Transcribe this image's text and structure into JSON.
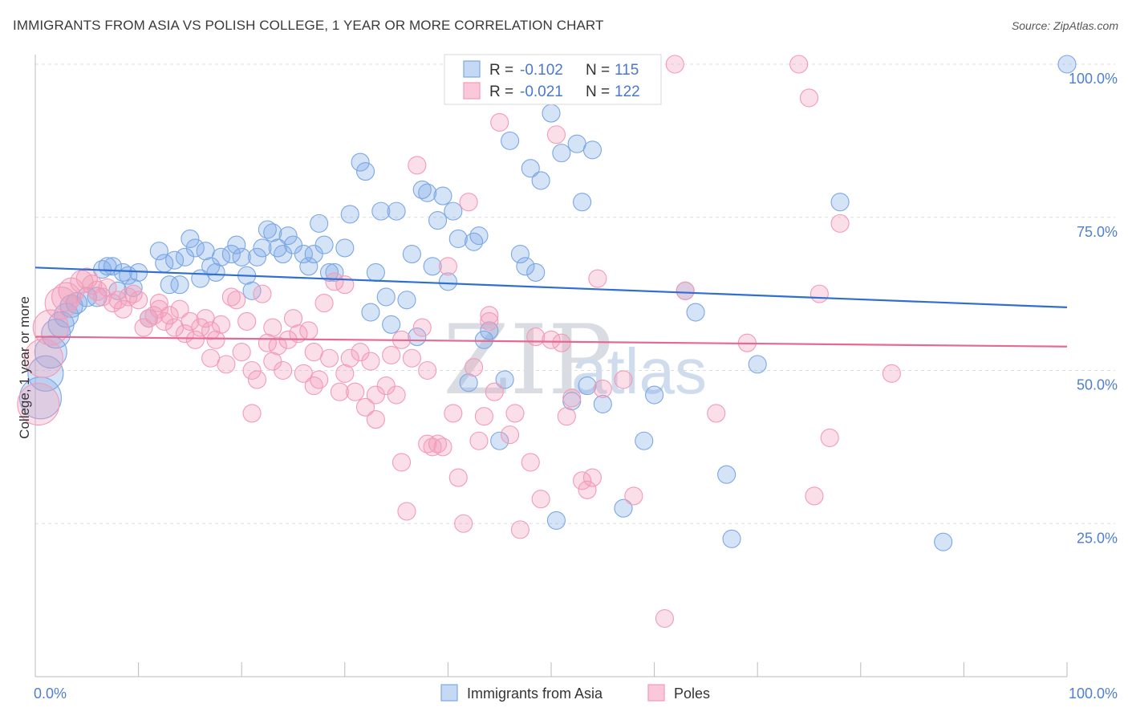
{
  "header": {
    "title": "IMMIGRANTS FROM ASIA VS POLISH COLLEGE, 1 YEAR OR MORE CORRELATION CHART",
    "source": "Source: ZipAtlas.com"
  },
  "watermark": {
    "zip": "ZIP",
    "atlas": "atlas"
  },
  "legend": {
    "r_label": "R =",
    "n_label": "N =",
    "rows": [
      {
        "r": "-0.102",
        "n": "115",
        "color": "#7ba7e6"
      },
      {
        "r": "-0.021",
        "n": "122",
        "color": "#f39ab8"
      }
    ]
  },
  "chart_data": {
    "type": "scatter",
    "title": "IMMIGRANTS FROM ASIA VS POLISH COLLEGE, 1 YEAR OR MORE CORRELATION CHART",
    "xlabel": "",
    "ylabel": "College, 1 year or more",
    "xlim": [
      0,
      100
    ],
    "ylim": [
      0,
      100
    ],
    "x_tick_labels": [
      "0.0%",
      "100.0%"
    ],
    "y_tick_labels": [
      "25.0%",
      "50.0%",
      "75.0%",
      "100.0%"
    ],
    "y_tick_values": [
      25,
      50,
      75,
      100
    ],
    "grid": true,
    "legend_position": "top-center",
    "series": [
      {
        "name": "Immigrants from Asia",
        "color": "#7ba7e6",
        "line_color": "#2f6fcf",
        "trend": [
          [
            0,
            66.8
          ],
          [
            100,
            60.3
          ]
        ],
        "points": [
          [
            0.5,
            45.5
          ],
          [
            1,
            49.5
          ],
          [
            1.5,
            53
          ],
          [
            2,
            56
          ],
          [
            2.5,
            57.5
          ],
          [
            3,
            59
          ],
          [
            3.5,
            60.5
          ],
          [
            4,
            61
          ],
          [
            5,
            62
          ],
          [
            6,
            62
          ],
          [
            6.5,
            66.5
          ],
          [
            7,
            67
          ],
          [
            7.5,
            67
          ],
          [
            8,
            63
          ],
          [
            8.5,
            66
          ],
          [
            9,
            65.5
          ],
          [
            9.5,
            63.5
          ],
          [
            10,
            66
          ],
          [
            11,
            58.5
          ],
          [
            12,
            69.5
          ],
          [
            12.5,
            67.5
          ],
          [
            13,
            64
          ],
          [
            13.5,
            68
          ],
          [
            14,
            64
          ],
          [
            14.5,
            68.5
          ],
          [
            15,
            71.5
          ],
          [
            15.5,
            70
          ],
          [
            16,
            65
          ],
          [
            16.5,
            69.5
          ],
          [
            17,
            67
          ],
          [
            17.5,
            66
          ],
          [
            18,
            68.5
          ],
          [
            19,
            69
          ],
          [
            19.5,
            70.5
          ],
          [
            20,
            68.5
          ],
          [
            20.5,
            65.5
          ],
          [
            21,
            63
          ],
          [
            21.5,
            68.5
          ],
          [
            22,
            70
          ],
          [
            22.5,
            73
          ],
          [
            23,
            72.5
          ],
          [
            23.5,
            70
          ],
          [
            24,
            69
          ],
          [
            24.5,
            72
          ],
          [
            25,
            70.5
          ],
          [
            26,
            69
          ],
          [
            26.5,
            67
          ],
          [
            27,
            69
          ],
          [
            27.5,
            74
          ],
          [
            28,
            70.5
          ],
          [
            28.5,
            66
          ],
          [
            29,
            66
          ],
          [
            30,
            70
          ],
          [
            30.5,
            75.5
          ],
          [
            31.5,
            84
          ],
          [
            32,
            82.5
          ],
          [
            32.5,
            59.5
          ],
          [
            33,
            66
          ],
          [
            33.5,
            76
          ],
          [
            34,
            62
          ],
          [
            34.5,
            57.5
          ],
          [
            35,
            76
          ],
          [
            36,
            61.5
          ],
          [
            36.5,
            69
          ],
          [
            37,
            55.5
          ],
          [
            37.5,
            79.5
          ],
          [
            38,
            79
          ],
          [
            38.5,
            67
          ],
          [
            39,
            74.5
          ],
          [
            39.5,
            78.5
          ],
          [
            40,
            64.5
          ],
          [
            40.5,
            76
          ],
          [
            41,
            71.5
          ],
          [
            42,
            48
          ],
          [
            42.5,
            71
          ],
          [
            43,
            72
          ],
          [
            43.5,
            55
          ],
          [
            44,
            56.5
          ],
          [
            45,
            38.5
          ],
          [
            45.5,
            48.5
          ],
          [
            46,
            87.5
          ],
          [
            47,
            69
          ],
          [
            47.5,
            67
          ],
          [
            48,
            83
          ],
          [
            48.5,
            66
          ],
          [
            49,
            81
          ],
          [
            50,
            92
          ],
          [
            50.5,
            25.5
          ],
          [
            51,
            85.5
          ],
          [
            52,
            45
          ],
          [
            52.5,
            87
          ],
          [
            53,
            77.5
          ],
          [
            53.5,
            47.5
          ],
          [
            54,
            86
          ],
          [
            55,
            44.5
          ],
          [
            57,
            27.5
          ],
          [
            59,
            38.5
          ],
          [
            60,
            46
          ],
          [
            63,
            63
          ],
          [
            64,
            59.5
          ],
          [
            67,
            33
          ],
          [
            67.5,
            22.5
          ],
          [
            70,
            51
          ],
          [
            78,
            77.5
          ],
          [
            88,
            22
          ],
          [
            100,
            100
          ]
        ],
        "point_sizes": [
          26,
          22,
          20,
          18,
          16,
          15,
          14,
          13,
          12,
          12,
          11,
          11,
          11,
          11,
          11,
          11,
          11,
          11,
          11,
          11,
          11,
          11,
          11,
          11,
          11,
          11,
          11,
          11,
          11,
          11,
          11,
          11,
          11,
          11,
          11,
          11,
          11,
          11,
          11,
          11,
          11,
          11,
          11,
          11,
          11,
          11,
          11,
          11,
          11,
          11,
          11,
          11,
          11,
          11,
          11,
          11,
          11,
          11,
          11,
          11,
          11,
          11,
          11,
          11,
          11,
          11,
          11,
          11,
          11,
          11,
          11,
          11,
          11,
          11,
          11,
          11,
          11,
          11,
          11,
          11,
          11,
          11,
          11,
          11,
          11,
          11,
          11,
          11,
          11,
          11,
          11,
          11,
          11,
          11,
          11,
          11,
          11,
          11,
          11,
          11,
          11,
          11,
          11,
          11,
          11
        ]
      },
      {
        "name": "Poles",
        "color": "#f39ab8",
        "line_color": "#e46a93",
        "trend": [
          [
            0,
            55.5
          ],
          [
            100,
            53.9
          ]
        ],
        "points": [
          [
            0.3,
            44.5
          ],
          [
            0.8,
            52
          ],
          [
            1.5,
            57
          ],
          [
            2.5,
            61
          ],
          [
            3,
            62
          ],
          [
            3.5,
            63
          ],
          [
            4.5,
            64.5
          ],
          [
            5,
            65
          ],
          [
            5.5,
            64
          ],
          [
            6,
            63
          ],
          [
            6.5,
            62
          ],
          [
            7,
            63.5
          ],
          [
            7.5,
            61
          ],
          [
            8,
            61.5
          ],
          [
            8.5,
            60
          ],
          [
            9,
            62
          ],
          [
            9.5,
            62.5
          ],
          [
            10,
            61.5
          ],
          [
            10.5,
            57
          ],
          [
            11,
            58.5
          ],
          [
            11.5,
            59
          ],
          [
            12,
            61
          ],
          [
            12.5,
            58
          ],
          [
            13,
            59
          ],
          [
            13.5,
            57
          ],
          [
            14,
            60
          ],
          [
            14.5,
            56
          ],
          [
            15,
            58
          ],
          [
            15.5,
            55
          ],
          [
            16,
            57
          ],
          [
            16.5,
            58.5
          ],
          [
            17,
            56.5
          ],
          [
            17.5,
            55
          ],
          [
            18,
            57.5
          ],
          [
            18.5,
            51
          ],
          [
            19,
            62
          ],
          [
            19.5,
            61.5
          ],
          [
            20,
            53
          ],
          [
            20.5,
            58
          ],
          [
            21,
            43
          ],
          [
            21.5,
            48.5
          ],
          [
            22,
            62.5
          ],
          [
            22.5,
            54.5
          ],
          [
            23,
            51.5
          ],
          [
            23.5,
            54
          ],
          [
            24,
            50
          ],
          [
            24.5,
            55
          ],
          [
            25,
            58.5
          ],
          [
            25.5,
            56
          ],
          [
            26,
            49.5
          ],
          [
            26.5,
            56.5
          ],
          [
            27,
            47.5
          ],
          [
            27.5,
            48.5
          ],
          [
            28,
            61
          ],
          [
            28.5,
            52
          ],
          [
            29,
            64.5
          ],
          [
            29.5,
            46.5
          ],
          [
            30,
            49.5
          ],
          [
            30.5,
            52
          ],
          [
            31,
            46.5
          ],
          [
            31.5,
            53
          ],
          [
            32,
            44
          ],
          [
            32.5,
            51.5
          ],
          [
            33,
            42
          ],
          [
            34,
            47.5
          ],
          [
            34.5,
            52.5
          ],
          [
            35,
            46
          ],
          [
            35.5,
            35
          ],
          [
            36,
            27
          ],
          [
            36.5,
            52
          ],
          [
            37,
            83.5
          ],
          [
            37.5,
            57
          ],
          [
            38,
            38
          ],
          [
            38.5,
            37.5
          ],
          [
            39,
            38
          ],
          [
            39.5,
            37.5
          ],
          [
            40,
            67
          ],
          [
            40.5,
            43
          ],
          [
            41,
            32.5
          ],
          [
            41.5,
            25
          ],
          [
            42,
            77.5
          ],
          [
            42.5,
            50.5
          ],
          [
            43,
            38.5
          ],
          [
            43.5,
            42.5
          ],
          [
            44,
            59
          ],
          [
            44.5,
            46.5
          ],
          [
            45,
            90.5
          ],
          [
            46,
            39.5
          ],
          [
            46.5,
            43
          ],
          [
            47,
            24
          ],
          [
            48,
            35
          ],
          [
            48.5,
            55.5
          ],
          [
            49,
            29
          ],
          [
            50,
            55
          ],
          [
            50.5,
            88.5
          ],
          [
            51,
            54.5
          ],
          [
            51.5,
            42.5
          ],
          [
            52,
            45.5
          ],
          [
            53,
            32
          ],
          [
            53.5,
            30.5
          ],
          [
            54,
            32.5
          ],
          [
            54.5,
            65
          ],
          [
            55,
            47
          ],
          [
            57,
            48.5
          ],
          [
            58,
            29.5
          ],
          [
            62,
            100
          ],
          [
            63,
            63
          ],
          [
            66,
            43
          ],
          [
            69,
            54.5
          ],
          [
            74,
            100
          ],
          [
            75,
            94.5
          ],
          [
            75.5,
            29.5
          ],
          [
            76,
            62.5
          ],
          [
            77,
            39
          ],
          [
            78,
            74
          ],
          [
            83,
            49.5
          ],
          [
            61,
            9.5
          ],
          [
            17,
            52
          ],
          [
            23,
            57
          ],
          [
            12,
            60
          ],
          [
            30,
            64
          ],
          [
            33,
            46
          ],
          [
            38,
            50
          ],
          [
            44,
            58
          ],
          [
            35.5,
            55
          ],
          [
            27,
            53
          ],
          [
            21,
            50
          ]
        ],
        "point_sizes": [
          26,
          24,
          22,
          20,
          18,
          16,
          14,
          13,
          12,
          12,
          11,
          11,
          11,
          11,
          11,
          11,
          11,
          11,
          11,
          11,
          11,
          11,
          11,
          11,
          11,
          11,
          11,
          11,
          11,
          11,
          11,
          11,
          11,
          11,
          11,
          11,
          11,
          11,
          11,
          11,
          11,
          11,
          11,
          11,
          11,
          11,
          11,
          11,
          11,
          11,
          11,
          11,
          11,
          11,
          11,
          11,
          11,
          11,
          11,
          11,
          11,
          11,
          11,
          11,
          11,
          11,
          11,
          11,
          11,
          11,
          11,
          11,
          11,
          11,
          11,
          11,
          11,
          11,
          11,
          11,
          11,
          11,
          11,
          11,
          11,
          11,
          11,
          11,
          11,
          11,
          11,
          11,
          11,
          11,
          11,
          11,
          11,
          11,
          11,
          11,
          11,
          11,
          11,
          11,
          11,
          11,
          11,
          11,
          11,
          11,
          11,
          11,
          11,
          11,
          11,
          11,
          11,
          11,
          11,
          11,
          11,
          11,
          11,
          11,
          11
        ]
      }
    ]
  }
}
